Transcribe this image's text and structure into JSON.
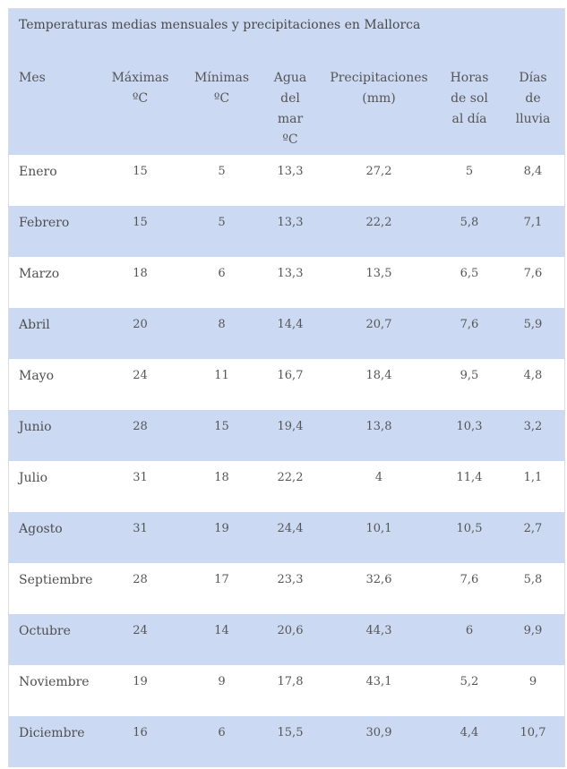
{
  "caption": "Temperaturas medias mensuales y precipitaciones en Mallorca",
  "columns": [
    {
      "lines": [
        "Mes"
      ]
    },
    {
      "lines": [
        "Máximas",
        "ºC"
      ]
    },
    {
      "lines": [
        "Mínimas",
        "ºC"
      ]
    },
    {
      "lines": [
        "Agua",
        "del",
        "mar",
        "ºC"
      ]
    },
    {
      "lines": [
        "Precipitaciones",
        "(mm)"
      ]
    },
    {
      "lines": [
        "Horas",
        "de sol",
        "al día"
      ]
    },
    {
      "lines": [
        "Días",
        "de",
        "lluvia"
      ]
    }
  ],
  "rows": [
    [
      "Enero",
      "15",
      "5",
      "13,3",
      "27,2",
      "5",
      "8,4"
    ],
    [
      "Febrero",
      "15",
      "5",
      "13,3",
      "22,2",
      "5,8",
      "7,1"
    ],
    [
      "Marzo",
      "18",
      "6",
      "13,3",
      "13,5",
      "6,5",
      "7,6"
    ],
    [
      "Abril",
      "20",
      "8",
      "14,4",
      "20,7",
      "7,6",
      "5,9"
    ],
    [
      "Mayo",
      "24",
      "11",
      "16,7",
      "18,4",
      "9,5",
      "4,8"
    ],
    [
      "Junio",
      "28",
      "15",
      "19,4",
      "13,8",
      "10,3",
      "3,2"
    ],
    [
      "Julio",
      "31",
      "18",
      "22,2",
      "4",
      "11,4",
      "1,1"
    ],
    [
      "Agosto",
      "31",
      "19",
      "24,4",
      "10,1",
      "10,5",
      "2,7"
    ],
    [
      "Septiembre",
      "28",
      "17",
      "23,3",
      "32,6",
      "7,6",
      "5,8"
    ],
    [
      "Octubre",
      "24",
      "14",
      "20,6",
      "44,3",
      "6",
      "9,9"
    ],
    [
      "Noviembre",
      "19",
      "9",
      "17,8",
      "43,1",
      "5,2",
      "9"
    ],
    [
      "Diciembre",
      "16",
      "6",
      "15,5",
      "30,9",
      "4,4",
      "10,7"
    ]
  ],
  "colors": {
    "band": "#cbd9f3",
    "text": "#555555"
  }
}
